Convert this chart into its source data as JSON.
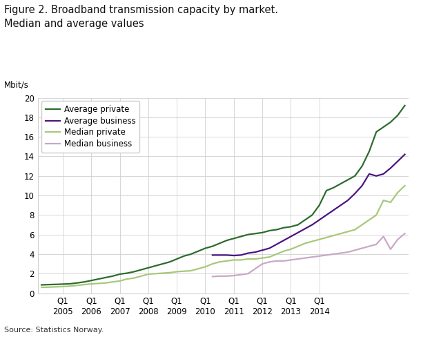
{
  "title_line1": "Figure 2. Broadband transmission capacity by market.",
  "title_line2": "Median and average values",
  "ylabel": "Mbit/s",
  "source": "Source: Statistics Norway.",
  "ylim": [
    0,
    20
  ],
  "yticks": [
    0,
    2,
    4,
    6,
    8,
    10,
    12,
    14,
    16,
    18,
    20
  ],
  "colors": {
    "avg_private": "#2d6b2d",
    "avg_business": "#4b1480",
    "med_private": "#a8c87a",
    "med_business": "#c8a8c8"
  },
  "legend_labels": [
    "Average private",
    "Average business",
    "Median private",
    "Median business"
  ],
  "x_tick_labels": [
    "Q1\n2005",
    "Q1\n2006",
    "Q1\n2007",
    "Q1\n2008",
    "Q1\n2009",
    "Q1\n2010",
    "Q1\n2011",
    "Q1\n2012",
    "Q1\n2013",
    "Q1\n2014"
  ],
  "series": {
    "avg_private": [
      0.85,
      0.88,
      0.9,
      0.93,
      0.96,
      1.05,
      1.15,
      1.3,
      1.45,
      1.6,
      1.75,
      1.95,
      2.05,
      2.2,
      2.4,
      2.6,
      2.8,
      3.0,
      3.2,
      3.5,
      3.8,
      4.0,
      4.3,
      4.6,
      4.8,
      5.1,
      5.4,
      5.6,
      5.8,
      6.0,
      6.1,
      6.2,
      6.4,
      6.5,
      6.7,
      6.8,
      7.0,
      7.5,
      8.0,
      9.0,
      10.5,
      10.8,
      11.2,
      11.6,
      12.0,
      13.0,
      14.5,
      16.5,
      17.0,
      17.5,
      18.2,
      19.2
    ],
    "avg_business": [
      null,
      null,
      null,
      null,
      null,
      null,
      null,
      null,
      null,
      null,
      null,
      null,
      null,
      null,
      null,
      null,
      null,
      null,
      null,
      null,
      null,
      null,
      null,
      null,
      3.9,
      3.9,
      3.9,
      3.85,
      3.9,
      4.1,
      4.2,
      4.4,
      4.6,
      5.0,
      5.4,
      5.8,
      6.2,
      6.6,
      7.0,
      7.5,
      8.0,
      8.5,
      9.0,
      9.5,
      10.2,
      11.0,
      12.2,
      12.0,
      12.2,
      12.8,
      13.5,
      14.2
    ],
    "med_private": [
      0.6,
      0.62,
      0.65,
      0.68,
      0.72,
      0.8,
      0.88,
      0.95,
      1.0,
      1.05,
      1.15,
      1.25,
      1.45,
      1.55,
      1.75,
      1.95,
      2.0,
      2.05,
      2.1,
      2.2,
      2.25,
      2.3,
      2.5,
      2.7,
      3.0,
      3.2,
      3.3,
      3.4,
      3.4,
      3.5,
      3.5,
      3.6,
      3.7,
      4.0,
      4.3,
      4.5,
      4.8,
      5.1,
      5.3,
      5.5,
      5.7,
      5.9,
      6.1,
      6.3,
      6.5,
      7.0,
      7.5,
      8.0,
      9.5,
      9.3,
      10.3,
      11.0
    ],
    "med_business": [
      null,
      null,
      null,
      null,
      null,
      null,
      null,
      null,
      null,
      null,
      null,
      null,
      null,
      null,
      null,
      null,
      null,
      null,
      null,
      null,
      null,
      null,
      null,
      null,
      1.7,
      1.75,
      1.75,
      1.8,
      1.9,
      2.0,
      2.5,
      3.0,
      3.2,
      3.3,
      3.3,
      3.4,
      3.5,
      3.6,
      3.7,
      3.8,
      3.9,
      4.0,
      4.1,
      4.2,
      4.4,
      4.6,
      4.8,
      5.0,
      5.8,
      4.5,
      5.5,
      6.1
    ]
  },
  "n_points": 52,
  "x_tick_positions": [
    3,
    7,
    11,
    15,
    19,
    23,
    27,
    31,
    35,
    39
  ]
}
